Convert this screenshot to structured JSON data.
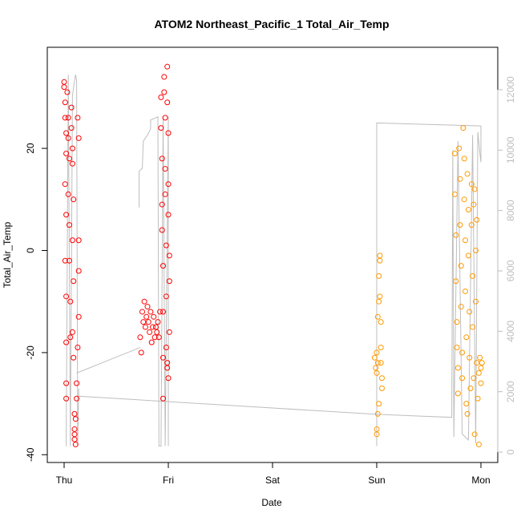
{
  "chart_data": {
    "type": "scatter",
    "title": "ATOM2 Northeast_Pacific_1 Total_Air_Temp",
    "xlabel": "Date",
    "ylabel": "Total_Air_Temp",
    "x_tick_labels": [
      "Thu",
      "Fri",
      "Sat",
      "Sun",
      "Mon"
    ],
    "y_ticks": [
      -40,
      -20,
      0,
      20
    ],
    "ylim": [
      -40,
      37
    ],
    "y2_ticks": [
      0,
      2000,
      4000,
      6000,
      8000,
      10000,
      12000
    ],
    "y2lim": [
      0,
      12800
    ],
    "grid": false,
    "colors": {
      "red": "#ff0000",
      "orange": "#ff9900",
      "gray_line": "#bebebe",
      "right_axis": "#bdbdbd"
    },
    "series": [
      {
        "color": "red",
        "points": [
          {
            "day": 0.0,
            "y": 33
          },
          {
            "day": 0.0,
            "y": 32
          },
          {
            "day": 0.01,
            "y": 29
          },
          {
            "day": 0.01,
            "y": 26
          },
          {
            "day": 0.02,
            "y": 23
          },
          {
            "day": 0.02,
            "y": 19
          },
          {
            "day": 0.01,
            "y": 13
          },
          {
            "day": 0.02,
            "y": 7
          },
          {
            "day": 0.01,
            "y": -2
          },
          {
            "day": 0.02,
            "y": -9
          },
          {
            "day": 0.02,
            "y": -18
          },
          {
            "day": 0.02,
            "y": -26
          },
          {
            "day": 0.02,
            "y": -29
          },
          {
            "day": 0.03,
            "y": 31
          },
          {
            "day": 0.04,
            "y": 26
          },
          {
            "day": 0.04,
            "y": 22
          },
          {
            "day": 0.05,
            "y": 18
          },
          {
            "day": 0.04,
            "y": 11
          },
          {
            "day": 0.05,
            "y": 5
          },
          {
            "day": 0.05,
            "y": -2
          },
          {
            "day": 0.06,
            "y": -10
          },
          {
            "day": 0.06,
            "y": -17
          },
          {
            "day": 0.07,
            "y": 28
          },
          {
            "day": 0.07,
            "y": 24
          },
          {
            "day": 0.08,
            "y": 20
          },
          {
            "day": 0.08,
            "y": 17
          },
          {
            "day": 0.09,
            "y": 10
          },
          {
            "day": 0.08,
            "y": 2
          },
          {
            "day": 0.09,
            "y": -6
          },
          {
            "day": 0.08,
            "y": -16
          },
          {
            "day": 0.09,
            "y": -21
          },
          {
            "day": 0.1,
            "y": -32
          },
          {
            "day": 0.1,
            "y": -35
          },
          {
            "day": 0.1,
            "y": -36
          },
          {
            "day": 0.1,
            "y": -37
          },
          {
            "day": 0.11,
            "y": -38
          },
          {
            "day": 0.11,
            "y": -33
          },
          {
            "day": 0.12,
            "y": -29
          },
          {
            "day": 0.13,
            "y": 26
          },
          {
            "day": 0.14,
            "y": 22
          },
          {
            "day": 0.14,
            "y": 2
          },
          {
            "day": 0.14,
            "y": -4
          },
          {
            "day": 0.14,
            "y": -13
          },
          {
            "day": 0.13,
            "y": -19
          },
          {
            "day": 0.12,
            "y": -26
          },
          {
            "day": 0.73,
            "y": -17
          },
          {
            "day": 0.74,
            "y": -20
          },
          {
            "day": 0.75,
            "y": -12
          },
          {
            "day": 0.76,
            "y": -14
          },
          {
            "day": 0.77,
            "y": -10
          },
          {
            "day": 0.78,
            "y": -15
          },
          {
            "day": 0.79,
            "y": -13
          },
          {
            "day": 0.8,
            "y": -11
          },
          {
            "day": 0.81,
            "y": -14
          },
          {
            "day": 0.82,
            "y": -16
          },
          {
            "day": 0.83,
            "y": -12
          },
          {
            "day": 0.84,
            "y": -18
          },
          {
            "day": 0.85,
            "y": -15
          },
          {
            "day": 0.86,
            "y": -13
          },
          {
            "day": 0.87,
            "y": -17
          },
          {
            "day": 0.88,
            "y": -15
          },
          {
            "day": 0.89,
            "y": -16
          },
          {
            "day": 0.9,
            "y": -14
          },
          {
            "day": 0.91,
            "y": -17
          },
          {
            "day": 0.92,
            "y": -12
          },
          {
            "day": 0.93,
            "y": 30
          },
          {
            "day": 0.93,
            "y": 24
          },
          {
            "day": 0.94,
            "y": 18
          },
          {
            "day": 0.94,
            "y": 9
          },
          {
            "day": 0.94,
            "y": 4
          },
          {
            "day": 0.95,
            "y": -3
          },
          {
            "day": 0.95,
            "y": -12
          },
          {
            "day": 0.95,
            "y": -21
          },
          {
            "day": 0.95,
            "y": -29
          },
          {
            "day": 0.96,
            "y": 34
          },
          {
            "day": 0.96,
            "y": 31
          },
          {
            "day": 0.97,
            "y": 26
          },
          {
            "day": 0.97,
            "y": 16
          },
          {
            "day": 0.97,
            "y": 11
          },
          {
            "day": 0.98,
            "y": 1
          },
          {
            "day": 0.98,
            "y": -9
          },
          {
            "day": 0.98,
            "y": -19
          },
          {
            "day": 0.99,
            "y": -22
          },
          {
            "day": 0.99,
            "y": 36
          },
          {
            "day": 0.99,
            "y": 29
          },
          {
            "day": 1.0,
            "y": 23
          },
          {
            "day": 1.0,
            "y": 13
          },
          {
            "day": 1.0,
            "y": 7
          },
          {
            "day": 1.01,
            "y": -1
          },
          {
            "day": 1.01,
            "y": -6
          },
          {
            "day": 1.01,
            "y": -16
          },
          {
            "day": 1.0,
            "y": -25
          },
          {
            "day": 0.99,
            "y": -23
          }
        ]
      },
      {
        "color": "orange",
        "points": [
          {
            "day": 2.98,
            "y": -21
          },
          {
            "day": 2.99,
            "y": -23
          },
          {
            "day": 3.0,
            "y": -20
          },
          {
            "day": 3.0,
            "y": -24
          },
          {
            "day": 3.01,
            "y": -22
          },
          {
            "day": 3.01,
            "y": -13
          },
          {
            "day": 3.02,
            "y": -10
          },
          {
            "day": 3.02,
            "y": -5
          },
          {
            "day": 3.03,
            "y": -2
          },
          {
            "day": 3.03,
            "y": -1
          },
          {
            "day": 3.04,
            "y": -14
          },
          {
            "day": 3.04,
            "y": -19
          },
          {
            "day": 3.05,
            "y": -25
          },
          {
            "day": 3.05,
            "y": -27
          },
          {
            "day": 3.03,
            "y": -9
          },
          {
            "day": 3.02,
            "y": -30
          },
          {
            "day": 3.01,
            "y": -32
          },
          {
            "day": 3.0,
            "y": -35
          },
          {
            "day": 3.0,
            "y": -36
          },
          {
            "day": 3.04,
            "y": -22
          },
          {
            "day": 3.75,
            "y": 19
          },
          {
            "day": 3.75,
            "y": 11
          },
          {
            "day": 3.76,
            "y": 3
          },
          {
            "day": 3.76,
            "y": -6
          },
          {
            "day": 3.77,
            "y": -14
          },
          {
            "day": 3.77,
            "y": -19
          },
          {
            "day": 3.78,
            "y": -23
          },
          {
            "day": 3.78,
            "y": -28
          },
          {
            "day": 3.79,
            "y": 20
          },
          {
            "day": 3.8,
            "y": 14
          },
          {
            "day": 3.8,
            "y": 5
          },
          {
            "day": 3.81,
            "y": -3
          },
          {
            "day": 3.81,
            "y": -11
          },
          {
            "day": 3.82,
            "y": -20
          },
          {
            "day": 3.82,
            "y": -25
          },
          {
            "day": 3.83,
            "y": 24
          },
          {
            "day": 3.84,
            "y": 18
          },
          {
            "day": 3.84,
            "y": 10
          },
          {
            "day": 3.85,
            "y": 2
          },
          {
            "day": 3.85,
            "y": -8
          },
          {
            "day": 3.86,
            "y": -17
          },
          {
            "day": 3.86,
            "y": -30
          },
          {
            "day": 3.87,
            "y": -32
          },
          {
            "day": 3.87,
            "y": 15
          },
          {
            "day": 3.88,
            "y": 8
          },
          {
            "day": 3.88,
            "y": -1
          },
          {
            "day": 3.89,
            "y": -12
          },
          {
            "day": 3.89,
            "y": -21
          },
          {
            "day": 3.9,
            "y": -27
          },
          {
            "day": 3.91,
            "y": 13
          },
          {
            "day": 3.91,
            "y": 5
          },
          {
            "day": 3.92,
            "y": -5
          },
          {
            "day": 3.92,
            "y": -15
          },
          {
            "day": 3.93,
            "y": -25
          },
          {
            "day": 3.94,
            "y": -36
          },
          {
            "day": 3.94,
            "y": 12
          },
          {
            "day": 3.95,
            "y": 0
          },
          {
            "day": 3.95,
            "y": -10
          },
          {
            "day": 3.96,
            "y": -22
          },
          {
            "day": 3.97,
            "y": -29
          },
          {
            "day": 3.98,
            "y": -38
          },
          {
            "day": 3.98,
            "y": -24
          },
          {
            "day": 3.99,
            "y": -21
          },
          {
            "day": 4.0,
            "y": -23
          },
          {
            "day": 4.0,
            "y": -26
          },
          {
            "day": 4.01,
            "y": -22
          },
          {
            "day": 3.96,
            "y": 6
          },
          {
            "day": 3.93,
            "y": 9
          }
        ]
      }
    ],
    "right_axis_line": [
      {
        "day": 0.02,
        "y2": 200
      },
      {
        "day": 0.04,
        "y2": 12500
      },
      {
        "day": 0.06,
        "y2": 200
      },
      {
        "day": 0.08,
        "y2": 11800
      },
      {
        "day": 0.1,
        "y2": 12300
      },
      {
        "day": 0.11,
        "y2": 12500
      },
      {
        "day": 0.12,
        "y2": 12300
      },
      {
        "day": 0.13,
        "y2": 200
      },
      {
        "day": 0.14,
        "y2": 2100
      },
      {
        "day": 0.14,
        "y2": 1850
      },
      {
        "day": 3.0,
        "y2": 1250
      },
      {
        "day": 3.72,
        "y2": 1150
      },
      {
        "day": 3.73,
        "y2": 10000
      },
      {
        "day": 3.74,
        "y2": 500
      },
      {
        "day": 3.78,
        "y2": 10300
      },
      {
        "day": 3.82,
        "y2": 600
      },
      {
        "day": 3.88,
        "y2": 400
      },
      {
        "day": 3.92,
        "y2": 10500
      },
      {
        "day": 3.95,
        "y2": 300
      },
      {
        "day": 3.97,
        "y2": 10600
      },
      {
        "day": 3.99,
        "y2": 9900
      },
      {
        "day": 4.0,
        "y2": 9600
      },
      {
        "day": 4.0,
        "y2": 10800
      },
      {
        "day": 3.0,
        "y2": 10900
      },
      {
        "day": 3.0,
        "y2": 200
      }
    ],
    "right_axis_line2": [
      {
        "day": 0.72,
        "y2": 8100
      },
      {
        "day": 0.72,
        "y2": 9300
      },
      {
        "day": 0.75,
        "y2": 9400
      },
      {
        "day": 0.76,
        "y2": 10300
      },
      {
        "day": 0.8,
        "y2": 10500
      },
      {
        "day": 0.83,
        "y2": 10700
      },
      {
        "day": 0.83,
        "y2": 11000
      },
      {
        "day": 0.9,
        "y2": 11100
      },
      {
        "day": 0.91,
        "y2": 200
      },
      {
        "day": 0.93,
        "y2": 200
      },
      {
        "day": 0.95,
        "y2": 11100
      },
      {
        "day": 0.97,
        "y2": 200
      },
      {
        "day": 1.0,
        "y2": 11100
      },
      {
        "day": 1.0,
        "y2": 200
      }
    ],
    "connector_line": [
      {
        "day": 0.12,
        "y": -24
      },
      {
        "day": 0.73,
        "y": -19
      }
    ]
  }
}
